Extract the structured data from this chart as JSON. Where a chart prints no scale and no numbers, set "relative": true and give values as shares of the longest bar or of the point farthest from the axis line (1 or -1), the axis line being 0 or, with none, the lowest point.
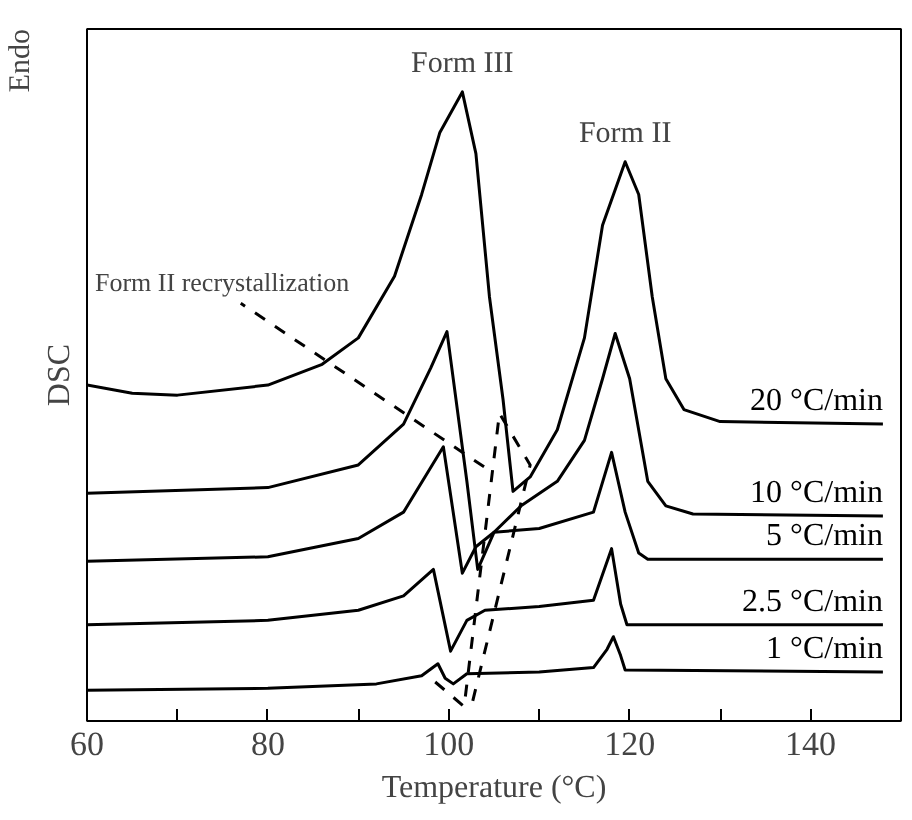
{
  "chart_data": {
    "type": "line",
    "relative": true,
    "xlabel": "Temperature (°C)",
    "ylabel": "DSC",
    "xlim": [
      60,
      150
    ],
    "xticks": [
      60,
      {
        "value": 70,
        "label": null
      },
      80,
      {
        "value": 90,
        "label": null
      },
      100,
      {
        "value": 110,
        "label": null
      },
      120,
      {
        "value": 130,
        "label": null
      },
      140
    ],
    "grid": false,
    "legend": false,
    "line_style": "solid",
    "marker": "none",
    "annotations": [
      "Endo",
      {
        "text": "Form III",
        "x": 101.5,
        "y": 1.0
      },
      {
        "text": "Form II",
        "x": 119.5,
        "y": 0.889
      },
      "Form II recrystallization"
    ],
    "series": [
      {
        "name": "20 °C/min",
        "color": "#000000",
        "x": [
          60,
          65,
          70,
          80,
          86,
          90,
          94,
          97,
          99,
          101.5,
          103,
          104.5,
          106,
          107.1,
          109,
          112,
          115,
          117,
          119.5,
          121,
          122.5,
          124,
          126,
          130,
          148
        ],
        "values": [
          0.534,
          0.521,
          0.518,
          0.534,
          0.567,
          0.609,
          0.707,
          0.837,
          0.935,
          1.0,
          0.902,
          0.674,
          0.511,
          0.365,
          0.388,
          0.463,
          0.609,
          0.788,
          0.889,
          0.837,
          0.674,
          0.544,
          0.495,
          0.476,
          0.472
        ]
      },
      {
        "name": "10 °C/min",
        "color": "#000000",
        "x": [
          60,
          80,
          90,
          95,
          98,
          99.8,
          102,
          103.2,
          105,
          108,
          112,
          115,
          117,
          118.4,
          120,
          122,
          124,
          127,
          148
        ],
        "values": [
          0.362,
          0.371,
          0.407,
          0.472,
          0.561,
          0.619,
          0.381,
          0.241,
          0.3,
          0.342,
          0.381,
          0.446,
          0.544,
          0.616,
          0.544,
          0.381,
          0.342,
          0.329,
          0.326
        ]
      },
      {
        "name": "5 °C/min",
        "color": "#000000",
        "x": [
          60,
          80,
          90,
          95,
          99.4,
          101.5,
          103,
          105,
          110,
          116,
          118,
          119.5,
          121,
          122,
          148
        ],
        "values": [
          0.254,
          0.261,
          0.29,
          0.332,
          0.436,
          0.235,
          0.277,
          0.3,
          0.306,
          0.332,
          0.427,
          0.332,
          0.267,
          0.257,
          0.257
        ]
      },
      {
        "name": "2.5 °C/min",
        "color": "#000000",
        "x": [
          60,
          80,
          90,
          95,
          98.3,
          100.2,
          102,
          104,
          110,
          116,
          118,
          119,
          119.7,
          148
        ],
        "values": [
          0.153,
          0.16,
          0.176,
          0.199,
          0.241,
          0.111,
          0.16,
          0.176,
          0.182,
          0.192,
          0.274,
          0.186,
          0.153,
          0.153
        ]
      },
      {
        "name": "1 °C/min",
        "color": "#000000",
        "x": [
          60,
          80,
          92,
          97,
          98.8,
          99.6,
          100.5,
          102,
          110,
          116,
          117.5,
          118.2,
          119,
          119.5,
          148
        ],
        "values": [
          0.049,
          0.052,
          0.059,
          0.072,
          0.091,
          0.068,
          0.059,
          0.075,
          0.078,
          0.085,
          0.114,
          0.134,
          0.104,
          0.081,
          0.078
        ]
      },
      {
        "color": "#000000",
        "line_style": "dashed",
        "x": [
          98.5,
          101.7,
          105.6,
          109,
          102.6
        ],
        "values": [
          0.062,
          0.023,
          0.489,
          0.407,
          0.029
        ]
      },
      {
        "color": "#000000",
        "line_style": "dashed",
        "x": [
          103.9,
          77
        ],
        "values": [
          0.404,
          0.664
        ]
      }
    ]
  }
}
